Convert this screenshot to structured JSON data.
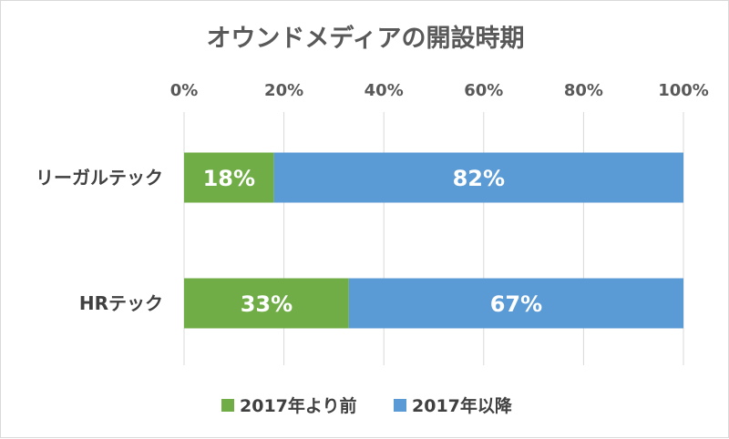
{
  "chart_data": {
    "type": "bar",
    "orientation": "horizontal",
    "stacked": "percent",
    "title": "オウンドメディアの開設時期",
    "categories": [
      "リーガルテック",
      "HRテック"
    ],
    "series": [
      {
        "name": "2017年より前",
        "color": "#70ad47",
        "values": [
          18,
          33
        ],
        "labels": [
          "18%",
          "33%"
        ]
      },
      {
        "name": "2017年以降",
        "color": "#5b9bd5",
        "values": [
          82,
          67
        ],
        "labels": [
          "82%",
          "67%"
        ]
      }
    ],
    "xlim": [
      0,
      100
    ],
    "xticks": [
      0,
      20,
      40,
      60,
      80,
      100
    ],
    "xtick_labels": [
      "0%",
      "20%",
      "40%",
      "60%",
      "80%",
      "100%"
    ],
    "x_axis_position": "top",
    "grid": true,
    "gridline_color": "#d9d9d9",
    "legend_position": "bottom"
  }
}
